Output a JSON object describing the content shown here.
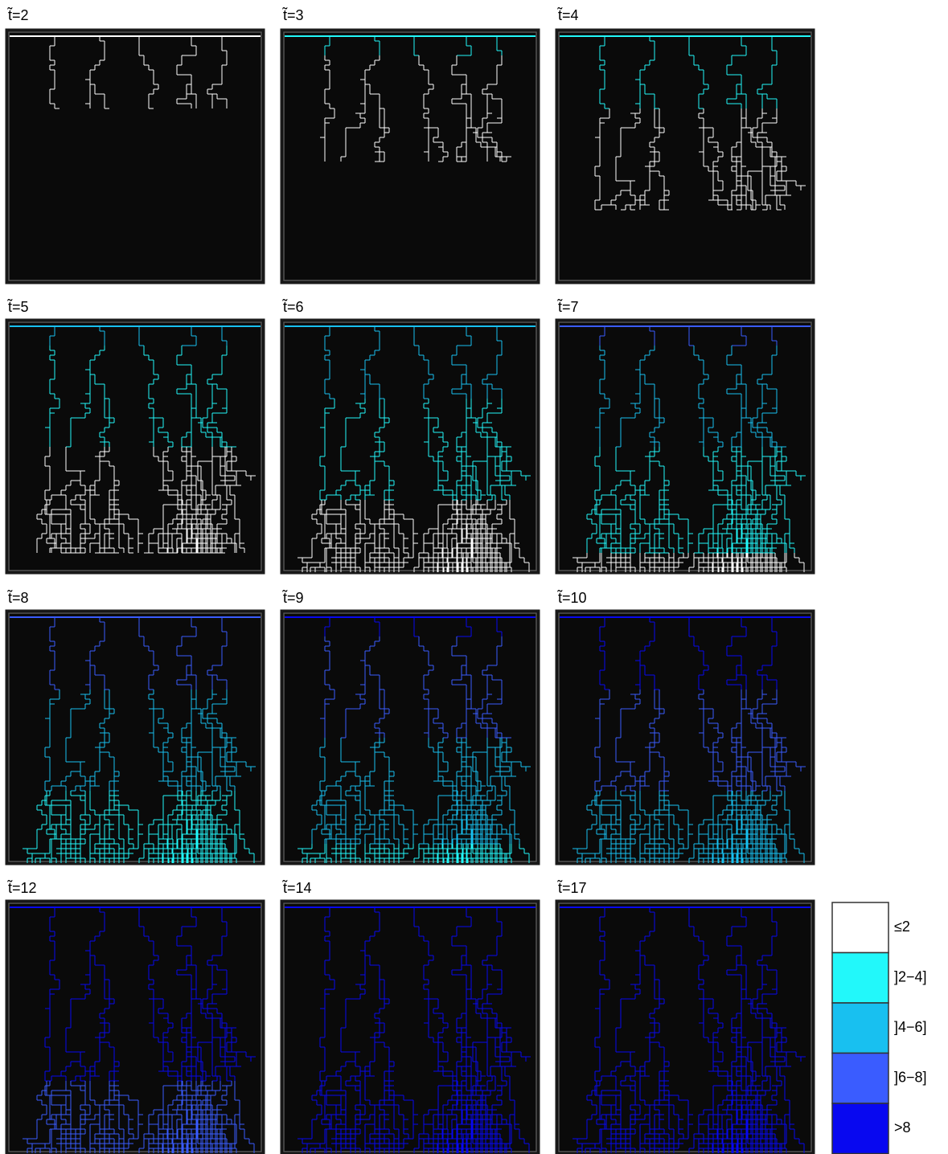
{
  "panels": [
    {
      "label": "t̃=2"
    },
    {
      "label": "t̃=3"
    },
    {
      "label": "t̃=4"
    },
    {
      "label": "t̃=5"
    },
    {
      "label": "t̃=6"
    },
    {
      "label": "t̃=7"
    },
    {
      "label": "t̃=8"
    },
    {
      "label": "t̃=9"
    },
    {
      "label": "t̃=10"
    },
    {
      "label": "t̃=12"
    },
    {
      "label": "t̃=14"
    },
    {
      "label": "t̃=17"
    }
  ],
  "legend": [
    {
      "label": "≤2",
      "color": "#ffffff"
    },
    {
      "label": "]2−4]",
      "color": "#22f8fa"
    },
    {
      "label": "]4−6]",
      "color": "#18c0f0"
    },
    {
      "label": "]6−8]",
      "color": "#3a5cff"
    },
    {
      "label": ">8",
      "color": "#0808f0"
    }
  ]
}
